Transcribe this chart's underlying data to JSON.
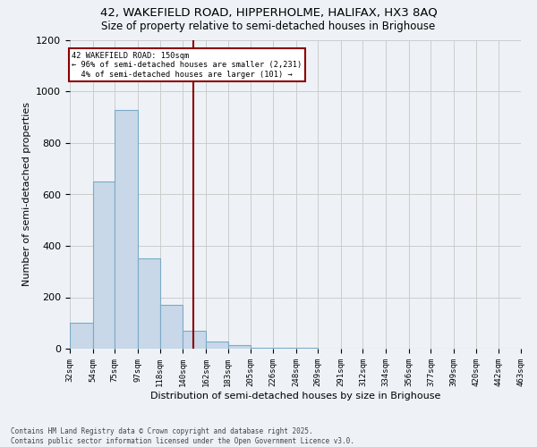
{
  "title_line1": "42, WAKEFIELD ROAD, HIPPERHOLME, HALIFAX, HX3 8AQ",
  "title_line2": "Size of property relative to semi-detached houses in Brighouse",
  "xlabel": "Distribution of semi-detached houses by size in Brighouse",
  "ylabel": "Number of semi-detached properties",
  "bin_labels": [
    "32sqm",
    "54sqm",
    "75sqm",
    "97sqm",
    "118sqm",
    "140sqm",
    "162sqm",
    "183sqm",
    "205sqm",
    "226sqm",
    "248sqm",
    "269sqm",
    "291sqm",
    "312sqm",
    "334sqm",
    "356sqm",
    "377sqm",
    "399sqm",
    "420sqm",
    "442sqm",
    "463sqm"
  ],
  "heights": [
    100,
    650,
    930,
    350,
    170,
    70,
    28,
    15,
    5,
    3,
    2,
    1,
    0,
    0,
    0,
    0,
    0,
    0,
    0,
    0
  ],
  "property_size": 150,
  "pct_smaller": 96,
  "n_smaller": 2231,
  "pct_larger": 4,
  "n_larger": 101,
  "bar_color": "#c8d8e8",
  "bar_edge_color": "#7aaac8",
  "vline_color": "#8b0000",
  "grid_color": "#cccccc",
  "background_color": "#eef2f7",
  "footnote1": "Contains HM Land Registry data © Crown copyright and database right 2025.",
  "footnote2": "Contains public sector information licensed under the Open Government Licence v3.0.",
  "ylim": [
    0,
    1200
  ],
  "yticks": [
    0,
    200,
    400,
    600,
    800,
    1000,
    1200
  ]
}
